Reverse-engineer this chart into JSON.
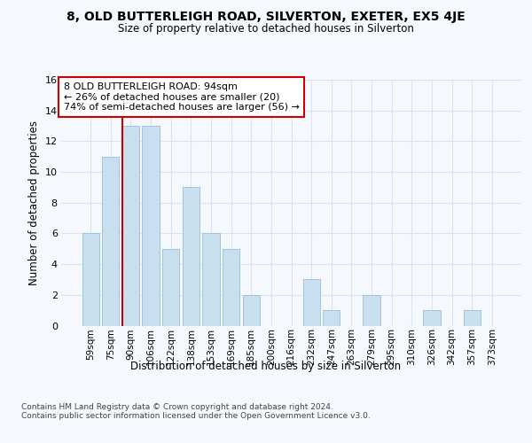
{
  "title1": "8, OLD BUTTERLEIGH ROAD, SILVERTON, EXETER, EX5 4JE",
  "title2": "Size of property relative to detached houses in Silverton",
  "xlabel": "Distribution of detached houses by size in Silverton",
  "ylabel": "Number of detached properties",
  "categories": [
    "59sqm",
    "75sqm",
    "90sqm",
    "106sqm",
    "122sqm",
    "138sqm",
    "153sqm",
    "169sqm",
    "185sqm",
    "200sqm",
    "216sqm",
    "232sqm",
    "247sqm",
    "263sqm",
    "279sqm",
    "295sqm",
    "310sqm",
    "326sqm",
    "342sqm",
    "357sqm",
    "373sqm"
  ],
  "values": [
    6,
    11,
    13,
    13,
    5,
    9,
    6,
    5,
    2,
    0,
    0,
    3,
    1,
    0,
    2,
    0,
    0,
    1,
    0,
    1,
    0
  ],
  "bar_color": "#c8dff0",
  "bar_edgecolor": "#a0c4e0",
  "subject_bar_index": 2,
  "subject_line_color": "#cc0000",
  "ylim": [
    0,
    16
  ],
  "yticks": [
    0,
    2,
    4,
    6,
    8,
    10,
    12,
    14,
    16
  ],
  "annotation_text": "8 OLD BUTTERLEIGH ROAD: 94sqm\n← 26% of detached houses are smaller (20)\n74% of semi-detached houses are larger (56) →",
  "annotation_box_facecolor": "#ffffff",
  "annotation_box_edgecolor": "#cc0000",
  "footer": "Contains HM Land Registry data © Crown copyright and database right 2024.\nContains public sector information licensed under the Open Government Licence v3.0.",
  "background_color": "#f5f8fc",
  "grid_color": "#d8e4f0"
}
